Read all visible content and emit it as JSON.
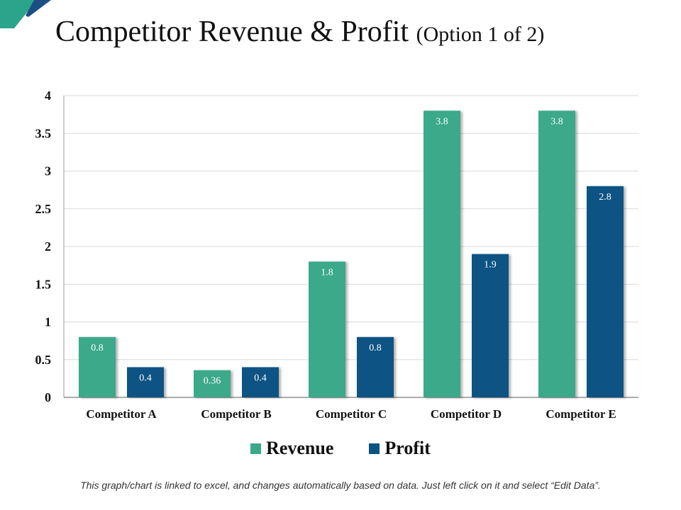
{
  "header": {
    "title": "Competitor Revenue & Profit",
    "subtitle": "(Option 1 of 2)"
  },
  "footer": {
    "note": "This graph/chart is linked to excel, and changes automatically based on data. Just left click on it and select “Edit Data”."
  },
  "colors": {
    "revenue": "#3aa98a",
    "profit": "#0b5383",
    "accent_dark": "#1c4e86",
    "accent_teal": "#2aa58c",
    "grid": "#d9d9d9"
  },
  "chart_data": {
    "type": "bar",
    "title": "Competitor Revenue & Profit (Option 1 of 2)",
    "xlabel": "",
    "ylabel": "",
    "ylim": [
      0,
      4
    ],
    "yticks": [
      "0",
      "0.5",
      "1",
      "1.5",
      "2",
      "2.5",
      "3",
      "3.5",
      "4"
    ],
    "categories": [
      "Competitor A",
      "Competitor B",
      "Competitor C",
      "Competitor D",
      "Competitor E"
    ],
    "series": [
      {
        "name": "Revenue",
        "values": [
          0.8,
          0.36,
          1.8,
          3.8,
          3.8
        ],
        "labels": [
          "0.8",
          "0.36",
          "1.8",
          "3.8",
          "3.8"
        ]
      },
      {
        "name": "Profit",
        "values": [
          0.4,
          0.4,
          0.8,
          1.9,
          2.8
        ],
        "labels": [
          "0.4",
          "0.4",
          "0.8",
          "1.9",
          "2.8"
        ]
      }
    ],
    "legend": "bottom-center",
    "grid": true
  }
}
